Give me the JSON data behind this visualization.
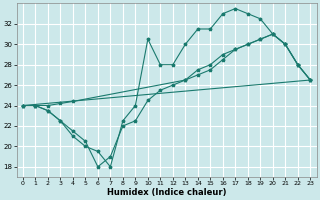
{
  "xlabel": "Humidex (Indice chaleur)",
  "bg_color": "#cce8ea",
  "grid_color": "#ffffff",
  "line_color": "#1a7a6e",
  "ylim": [
    17,
    34
  ],
  "xlim": [
    -0.5,
    23.5
  ],
  "yticks": [
    18,
    20,
    22,
    24,
    26,
    28,
    30,
    32
  ],
  "xticks": [
    0,
    1,
    2,
    3,
    4,
    5,
    6,
    7,
    8,
    9,
    10,
    11,
    12,
    13,
    14,
    15,
    16,
    17,
    18,
    19,
    20,
    21,
    22,
    23
  ],
  "curve_upper": {
    "x": [
      0,
      1,
      2,
      3,
      4,
      5,
      6,
      7,
      8,
      9,
      10,
      11,
      12,
      13,
      14,
      15,
      16,
      17,
      18,
      19,
      20,
      21,
      22,
      23
    ],
    "y": [
      24,
      24,
      23.5,
      22.5,
      21,
      20,
      19.5,
      18.0,
      22.5,
      24.0,
      30.5,
      28.0,
      28.0,
      30.0,
      31.5,
      31.5,
      33.0,
      33.5,
      33.0,
      32.5,
      31.0,
      30.0,
      28.0,
      26.5
    ]
  },
  "curve_mid": {
    "x": [
      0,
      1,
      2,
      3,
      4,
      13,
      14,
      15,
      16,
      17,
      18,
      19,
      20,
      21,
      22,
      23
    ],
    "y": [
      24,
      24,
      24,
      24.2,
      24.4,
      26.5,
      27.0,
      27.5,
      28.5,
      29.5,
      30.0,
      30.5,
      31.0,
      30.0,
      28.0,
      26.5
    ]
  },
  "curve_lower": {
    "x": [
      0,
      1,
      2,
      3,
      4,
      5,
      6,
      7,
      8,
      9,
      10,
      11,
      12,
      13,
      14,
      15,
      16,
      17,
      18,
      19,
      20,
      21,
      22,
      23
    ],
    "y": [
      24,
      24,
      23.5,
      22.5,
      21.5,
      20.5,
      18.0,
      19.0,
      22.0,
      22.5,
      24.5,
      25.5,
      26.0,
      26.5,
      27.5,
      28.0,
      29.0,
      29.5,
      30.0,
      30.5,
      31.0,
      30.0,
      28.0,
      26.5
    ]
  },
  "curve_diag": {
    "x": [
      0,
      23
    ],
    "y": [
      24,
      26.5
    ]
  }
}
